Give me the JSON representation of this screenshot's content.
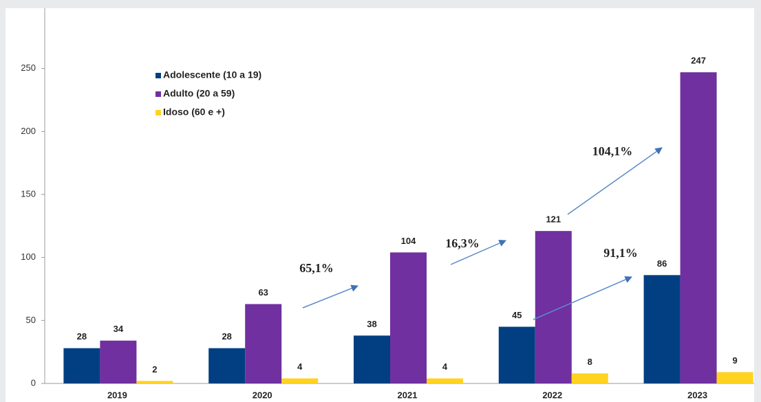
{
  "chart_data": {
    "type": "bar",
    "categories": [
      "2019",
      "2020",
      "2021",
      "2022",
      "2023"
    ],
    "series": [
      {
        "name": "Adolescente (10 a 19)",
        "color": "#023f82",
        "values": [
          28,
          28,
          38,
          45,
          86
        ]
      },
      {
        "name": "Adulto (20 a 59)",
        "color": "#7030a0",
        "values": [
          34,
          63,
          104,
          121,
          247
        ]
      },
      {
        "name": "Idoso (60 e +)",
        "color": "#ffd320",
        "values": [
          2,
          4,
          4,
          8,
          9
        ]
      }
    ],
    "ylim": [
      0,
      300
    ],
    "yticks": [
      0,
      50,
      100,
      150,
      200,
      250,
      300
    ],
    "annotations": [
      "65,1%",
      "16,3%",
      "104,1%",
      "91,1%"
    ],
    "legend": "upper left",
    "grid": false
  }
}
